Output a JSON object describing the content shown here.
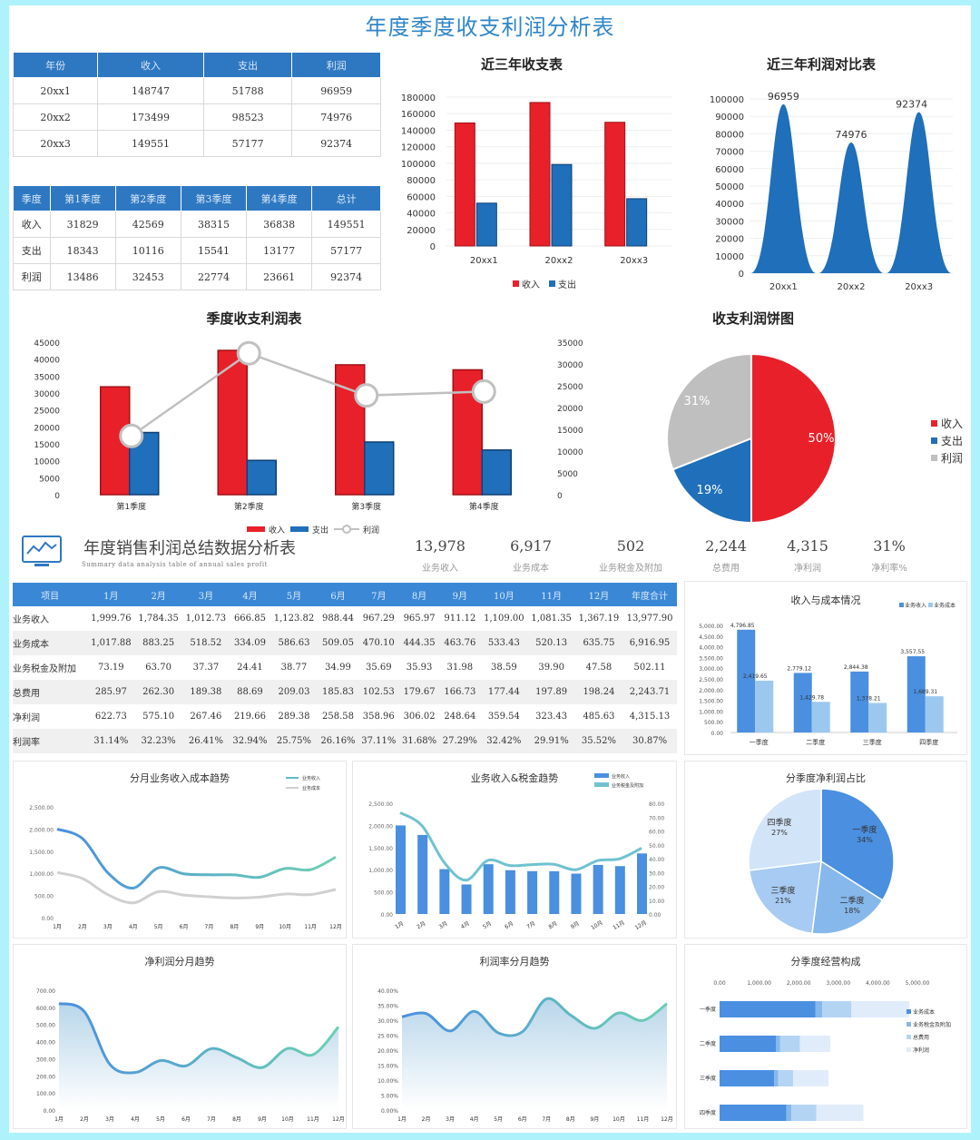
{
  "title": "年度季度收支利润分析表",
  "annual_table": {
    "headers": [
      "年份",
      "收入",
      "支出",
      "利润"
    ],
    "rows": [
      [
        "20xx1",
        "148747",
        "51788",
        "96959"
      ],
      [
        "20xx2",
        "173499",
        "98523",
        "74976"
      ],
      [
        "20xx3",
        "149551",
        "57177",
        "92374"
      ]
    ]
  },
  "quarter_table": {
    "headers": [
      "季度",
      "第1季度",
      "第2季度",
      "第3季度",
      "第4季度",
      "总计"
    ],
    "rows": [
      [
        "收入",
        "31829",
        "42569",
        "38315",
        "36838",
        "149551"
      ],
      [
        "支出",
        "18343",
        "10116",
        "15541",
        "13177",
        "57177"
      ],
      [
        "利润",
        "13486",
        "32453",
        "22774",
        "23661",
        "92374"
      ]
    ]
  },
  "chart_data": [
    {
      "id": "c1",
      "type": "bar",
      "title": "近三年收支表",
      "categories": [
        "20xx1",
        "20xx2",
        "20xx3"
      ],
      "series": [
        {
          "name": "收入",
          "values": [
            148747,
            173499,
            149551
          ],
          "color": "#e8202a"
        },
        {
          "name": "支出",
          "values": [
            51788,
            98523,
            57177
          ],
          "color": "#1f6fba"
        }
      ],
      "ylim": [
        0,
        180000
      ],
      "yticks": [
        "180000",
        "160000",
        "140000",
        "120000",
        "100000",
        "80000",
        "60000",
        "40000",
        "20000",
        "0"
      ]
    },
    {
      "id": "c2",
      "type": "area",
      "title": "近三年利润对比表",
      "categories": [
        "20xx1",
        "20xx2",
        "20xx3"
      ],
      "values": [
        96959,
        74976,
        92374
      ],
      "labels": [
        "96959",
        "74976",
        "92374"
      ],
      "ylim": [
        0,
        100000
      ],
      "yticks": [
        "100000",
        "90000",
        "80000",
        "70000",
        "60000",
        "50000",
        "40000",
        "30000",
        "20000",
        "10000",
        "0"
      ],
      "color": "#1f6fba"
    },
    {
      "id": "c3",
      "type": "bar",
      "title": "季度收支利润表",
      "categories": [
        "第1季度",
        "第2季度",
        "第3季度",
        "第4季度"
      ],
      "series": [
        {
          "name": "收入",
          "values": [
            31829,
            42569,
            38315,
            36838
          ],
          "color": "#e8202a"
        },
        {
          "name": "支出",
          "values": [
            18343,
            10116,
            15541,
            13177
          ],
          "color": "#1f6fba"
        },
        {
          "name": "利润",
          "values": [
            13486,
            32453,
            22774,
            23661
          ],
          "color": "#c0c0c0",
          "axis": "right"
        }
      ],
      "ylim": [
        0,
        45000
      ],
      "y2lim": [
        0,
        35000
      ],
      "yticks": [
        "45000",
        "40000",
        "35000",
        "30000",
        "25000",
        "20000",
        "15000",
        "10000",
        "5000",
        "0"
      ],
      "y2ticks": [
        "35000",
        "30000",
        "25000",
        "20000",
        "15000",
        "10000",
        "5000",
        "0"
      ]
    },
    {
      "id": "c4",
      "type": "pie",
      "title": "收支利润饼图",
      "labels": [
        "收入",
        "支出",
        "利润"
      ],
      "values": [
        50,
        19,
        31
      ],
      "pct_labels": [
        "50%",
        "19%",
        "31%"
      ],
      "colors": [
        "#e8202a",
        "#1f6fba",
        "#bfbfbf"
      ]
    },
    {
      "id": "c5",
      "type": "bar",
      "title": "收入与成本情况",
      "categories": [
        "一季度",
        "二季度",
        "三季度",
        "四季度"
      ],
      "series": [
        {
          "name": "业务收入",
          "values": [
            4796.85,
            2779.12,
            2844.38,
            3557.55
          ],
          "labels": [
            "4,796.85",
            "2,779.12",
            "2,844.38",
            "3,557.55"
          ],
          "color": "#4a8fe0"
        },
        {
          "name": "业务成本",
          "values": [
            2419.65,
            1429.78,
            1378.21,
            1689.31
          ],
          "labels": [
            "2,419.65",
            "1,429.78",
            "1,378.21",
            "1,689.31"
          ],
          "color": "#9cc8f0"
        }
      ],
      "ylim": [
        0,
        5000
      ],
      "yticks": [
        "5,000.00",
        "4,500.00",
        "4,000.00",
        "3,500.00",
        "3,000.00",
        "2,500.00",
        "2,000.00",
        "1,500.00",
        "1,000.00",
        "500.00",
        "0.00"
      ]
    },
    {
      "id": "c6",
      "type": "line",
      "title": "分月业务收入成本趋势",
      "categories": [
        "1月",
        "2月",
        "3月",
        "4月",
        "5月",
        "6月",
        "7月",
        "8月",
        "9月",
        "10月",
        "11月",
        "12月"
      ],
      "series": [
        {
          "name": "业务收入",
          "values": [
            1999.76,
            1784.35,
            1012.73,
            666.85,
            1123.82,
            988.44,
            967.29,
            965.97,
            911.12,
            1109.0,
            1081.35,
            1367.19
          ],
          "color": "#5fb9c8"
        },
        {
          "name": "业务成本",
          "values": [
            1017.88,
            883.25,
            518.52,
            334.09,
            586.63,
            509.05,
            470.1,
            444.35,
            463.76,
            533.43,
            520.13,
            635.75
          ],
          "color": "#d0d0d0"
        }
      ],
      "ylim": [
        0,
        2500
      ],
      "yticks": [
        "2,500.00",
        "2,000.00",
        "1,500.00",
        "1,000.00",
        "500.00",
        "0.00"
      ]
    },
    {
      "id": "c7",
      "type": "bar+line",
      "title": "业务收入&税金趋势",
      "categories": [
        "1月",
        "2月",
        "3月",
        "4月",
        "5月",
        "6月",
        "7月",
        "8月",
        "9月",
        "10月",
        "11月",
        "12月"
      ],
      "series": [
        {
          "name": "业务收入",
          "values": [
            1999.76,
            1784.35,
            1012.73,
            666.85,
            1123.82,
            988.44,
            967.29,
            965.97,
            911.12,
            1109.0,
            1081.35,
            1367.19
          ],
          "color": "#4a8fe0"
        },
        {
          "name": "业务税金及附加",
          "values": [
            73.19,
            63.7,
            37.37,
            24.41,
            38.77,
            34.99,
            35.69,
            35.93,
            31.98,
            38.59,
            39.9,
            47.58
          ],
          "color": "#6fc2cf",
          "axis": "right"
        }
      ],
      "ylim": [
        0,
        2500
      ],
      "y2lim": [
        0,
        80
      ],
      "yticks": [
        "2,500.00",
        "2,000.00",
        "1,500.00",
        "1,000.00",
        "500.00",
        "0.00"
      ],
      "y2ticks": [
        "80.00",
        "70.00",
        "60.00",
        "50.00",
        "40.00",
        "30.00",
        "20.00",
        "10.00",
        "0.00"
      ]
    },
    {
      "id": "c8",
      "type": "pie",
      "title": "分季度净利润占比",
      "labels": [
        "一季度",
        "二季度",
        "三季度",
        "四季度"
      ],
      "values": [
        34,
        18,
        21,
        27
      ],
      "pct_labels": [
        "34%",
        "18%",
        "21%",
        "27%"
      ],
      "colors": [
        "#4a8fe0",
        "#86b8ec",
        "#a7cbf2",
        "#d2e4f8"
      ]
    },
    {
      "id": "c9",
      "type": "area",
      "title": "净利润分月趋势",
      "categories": [
        "1月",
        "2月",
        "3月",
        "4月",
        "5月",
        "6月",
        "7月",
        "8月",
        "9月",
        "10月",
        "11月",
        "12月"
      ],
      "values": [
        622.73,
        575.1,
        267.46,
        219.66,
        289.38,
        258.58,
        358.96,
        306.02,
        248.64,
        359.54,
        323.43,
        485.63
      ],
      "ylim": [
        0,
        700
      ],
      "yticks": [
        "700.00",
        "600.00",
        "500.00",
        "400.00",
        "300.00",
        "200.00",
        "100.00",
        "0.00"
      ]
    },
    {
      "id": "c10",
      "type": "area",
      "title": "利润率分月趋势",
      "categories": [
        "1月",
        "2月",
        "3月",
        "4月",
        "5月",
        "6月",
        "7月",
        "8月",
        "9月",
        "10月",
        "11月",
        "12月"
      ],
      "values": [
        31.14,
        32.23,
        26.41,
        32.94,
        25.75,
        26.16,
        37.11,
        31.68,
        27.29,
        32.42,
        29.91,
        35.52
      ],
      "ylim": [
        0,
        40
      ],
      "yticks": [
        "40.00%",
        "35.00%",
        "30.00%",
        "25.00%",
        "20.00%",
        "15.00%",
        "10.00%",
        "5.00%",
        "0.00%"
      ]
    },
    {
      "id": "c11",
      "type": "stacked-bar",
      "title": "分季度经营构成",
      "categories": [
        "一季度",
        "二季度",
        "三季度",
        "四季度"
      ],
      "series": [
        {
          "name": "业务成本",
          "values": [
            2419.65,
            1429.78,
            1378.21,
            1689.31
          ],
          "color": "#4a8fe0"
        },
        {
          "name": "业务税金及附加",
          "values": [
            174.26,
            103.36,
            103.04,
            126.45
          ],
          "color": "#86b8ec"
        },
        {
          "name": "总费用",
          "values": [
            738.3,
            498.4,
            380.6,
            627.4
          ],
          "color": "#b4d4f4"
        },
        {
          "name": "净利润",
          "values": [
            1465.29,
            767.73,
            891.17,
            1191.68
          ],
          "color": "#e0ecfa"
        }
      ],
      "xlim": [
        0,
        5000
      ],
      "xticks": [
        "0.00",
        "1,000.00",
        "2,000.00",
        "3,000.00",
        "4,000.00",
        "5,000.00"
      ]
    }
  ],
  "summary": {
    "title": "年度销售利润总结数据分析表",
    "subtitle": "Summary data analysis table of annual sales profit",
    "kpis": [
      {
        "value": "13,978",
        "label": "业务收入"
      },
      {
        "value": "6,917",
        "label": "业务成本"
      },
      {
        "value": "502",
        "label": "业务税金及附加"
      },
      {
        "value": "2,244",
        "label": "总费用"
      },
      {
        "value": "4,315",
        "label": "净利润"
      },
      {
        "value": "31%",
        "label": "净利率%"
      }
    ]
  },
  "monthly_table": {
    "headers": [
      "项目",
      "1月",
      "2月",
      "3月",
      "4月",
      "5月",
      "6月",
      "7月",
      "8月",
      "9月",
      "10月",
      "11月",
      "12月",
      "年度合计"
    ],
    "rows": [
      [
        "业务收入",
        "1,999.76",
        "1,784.35",
        "1,012.73",
        "666.85",
        "1,123.82",
        "988.44",
        "967.29",
        "965.97",
        "911.12",
        "1,109.00",
        "1,081.35",
        "1,367.19",
        "13,977.90"
      ],
      [
        "业务成本",
        "1,017.88",
        "883.25",
        "518.52",
        "334.09",
        "586.63",
        "509.05",
        "470.10",
        "444.35",
        "463.76",
        "533.43",
        "520.13",
        "635.75",
        "6,916.95"
      ],
      [
        "业务税金及附加",
        "73.19",
        "63.70",
        "37.37",
        "24.41",
        "38.77",
        "34.99",
        "35.69",
        "35.93",
        "31.98",
        "38.59",
        "39.90",
        "47.58",
        "502.11"
      ],
      [
        "总费用",
        "285.97",
        "262.30",
        "189.38",
        "88.69",
        "209.03",
        "185.83",
        "102.53",
        "179.67",
        "166.73",
        "177.44",
        "197.89",
        "198.24",
        "2,243.71"
      ],
      [
        "净利润",
        "622.73",
        "575.10",
        "267.46",
        "219.66",
        "289.38",
        "258.58",
        "358.96",
        "306.02",
        "248.64",
        "359.54",
        "323.43",
        "485.63",
        "4,315.13"
      ],
      [
        "利润率",
        "31.14%",
        "32.23%",
        "26.41%",
        "32.94%",
        "25.75%",
        "26.16%",
        "37.11%",
        "31.68%",
        "27.29%",
        "32.42%",
        "29.91%",
        "35.52%",
        "30.87%"
      ]
    ]
  }
}
